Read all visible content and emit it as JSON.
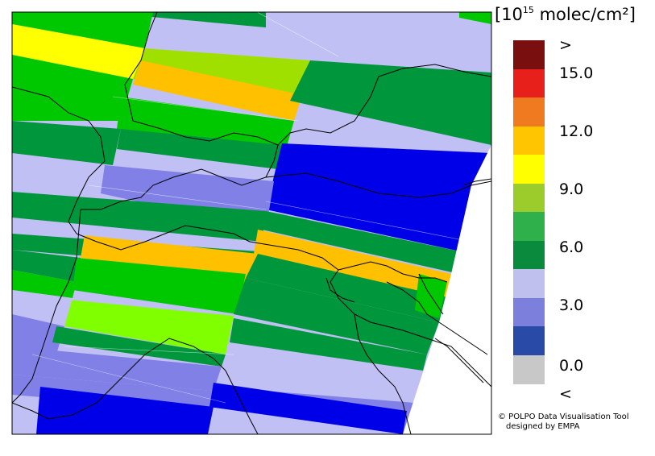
{
  "legend": {
    "unit_prefix": "[10",
    "unit_exp": "15",
    "unit_suffix": " molec/cm²]",
    "swatch_colors": [
      "#7a0f0f",
      "#e8201c",
      "#f07a20",
      "#ffc600",
      "#ffff00",
      "#9ccb2c",
      "#2fb04a",
      "#0a8a3c",
      "#c0c0ee",
      "#7c80dc",
      "#2a4aa8",
      "#c8c8c8"
    ],
    "ticks": [
      ">",
      "15.0",
      "12.0",
      "9.0",
      "6.0",
      "3.0",
      "0.0",
      "<"
    ]
  },
  "credits": {
    "line1": "© POLPO Data Visualisation Tool",
    "line2": "designed by EMPA"
  },
  "map": {
    "colors": {
      "lavender": "#c0c0f4",
      "periwinkle": "#8080e6",
      "blue": "#0000e8",
      "dark_green": "#00963c",
      "green": "#00c800",
      "lime": "#80ff00",
      "yellow_green": "#a0e000",
      "yellow": "#ffff00",
      "orange": "#ffc000",
      "background": "#ffffff",
      "border": "#000000"
    }
  }
}
